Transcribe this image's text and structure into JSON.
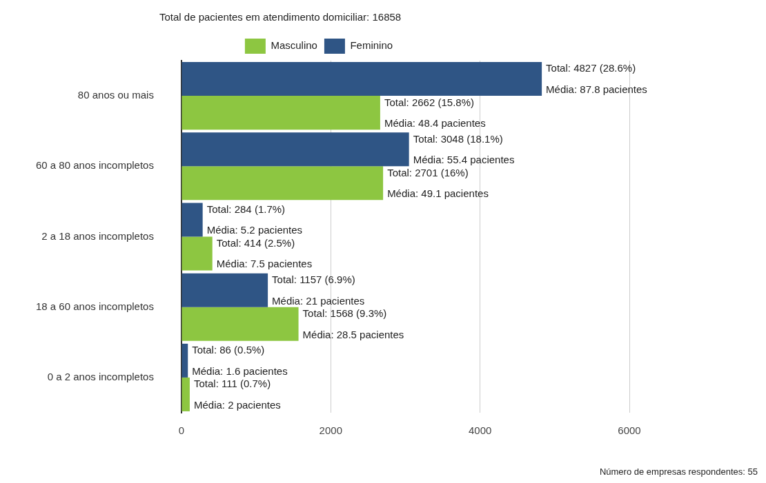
{
  "chart_data": {
    "type": "bar",
    "orientation": "horizontal",
    "title": "Total de pacientes em atendimento domiciliar: 16858",
    "categories": [
      "80 anos ou mais",
      "60 a 80 anos incompletos",
      "2 a 18 anos incompletos",
      "18 a 60 anos incompletos",
      "0 a 2 anos incompletos"
    ],
    "series": [
      {
        "name": "Feminino",
        "color": "#2f5585",
        "values": [
          4827,
          3048,
          284,
          1157,
          86
        ],
        "value_labels": [
          "Total: 4827 (28.6%)\nMédia: 87.8 pacientes",
          "Total: 3048 (18.1%)\nMédia: 55.4 pacientes",
          "Total: 284 (1.7%)\nMédia: 5.2 pacientes",
          "Total: 1157 (6.9%)\nMédia: 21 pacientes",
          "Total: 86 (0.5%)\nMédia: 1.6 pacientes"
        ]
      },
      {
        "name": "Masculino",
        "color": "#8dc641",
        "values": [
          2662,
          2701,
          414,
          1568,
          111
        ],
        "value_labels": [
          "Total: 2662 (15.8%)\nMédia: 48.4 pacientes",
          "Total: 2701 (16%)\nMédia: 49.1 pacientes",
          "Total: 414 (2.5%)\nMédia: 7.5 pacientes",
          "Total: 1568 (9.3%)\nMédia: 28.5 pacientes",
          "Total: 111 (0.7%)\nMédia: 2 pacientes"
        ]
      }
    ],
    "xlim": [
      0,
      6000
    ],
    "xticks": [
      0,
      2000,
      4000,
      6000
    ],
    "grid": "x",
    "legend": "top",
    "annotations": [
      "Número de empresas respondentes: 55"
    ]
  }
}
